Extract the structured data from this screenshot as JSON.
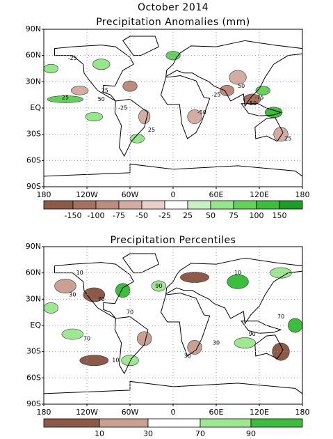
{
  "header": {
    "title": "October 2014"
  },
  "panels": [
    {
      "title": "Precipitation Anomalies (mm)",
      "lat_labels": [
        "90N",
        "60N",
        "30N",
        "EQ",
        "30S",
        "60S",
        "90S"
      ],
      "lon_labels": [
        "180",
        "120W",
        "60W",
        "0",
        "60E",
        "120E",
        "180"
      ],
      "colorbar": [
        "-150",
        "-100",
        "-75",
        "-50",
        "-25",
        "25",
        "50",
        "75",
        "100",
        "150"
      ],
      "contour_labels": [
        "-25",
        "25",
        "25",
        "50",
        "-25",
        "-50",
        "25",
        "-25",
        "50",
        "-50",
        "-75",
        "25"
      ]
    },
    {
      "title": "Precipitation Percentiles",
      "lat_labels": [
        "90N",
        "60N",
        "30N",
        "EQ",
        "30S",
        "60S",
        "90S"
      ],
      "lon_labels": [
        "180",
        "120W",
        "60W",
        "0",
        "60E",
        "120E",
        "180"
      ],
      "colorbar": [
        "10",
        "30",
        "70",
        "90"
      ],
      "contour_labels": [
        "10",
        "30",
        "70",
        "70",
        "90",
        "30",
        "10",
        "70",
        "30",
        "90",
        "70",
        "10"
      ]
    }
  ]
}
